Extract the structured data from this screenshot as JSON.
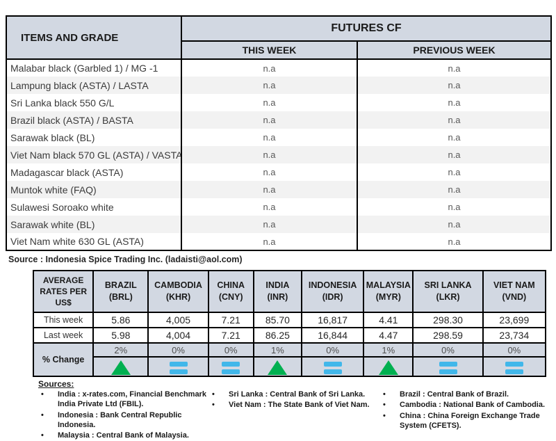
{
  "colors": {
    "header_bg": "#d2d8e2",
    "alt_row_bg": "#f2f2f2",
    "up_green": "#00b050",
    "flat_blue": "#41b7ea"
  },
  "futures_table": {
    "items_header": "ITEMS AND GRADE",
    "group_header": "FUTURES CF",
    "subheaders": {
      "this_week": "THIS WEEK",
      "previous_week": "PREVIOUS WEEK"
    },
    "rows": [
      {
        "item": "Malabar black (Garbled 1) / MG -1",
        "this_week": "n.a",
        "previous_week": "n.a"
      },
      {
        "item": "Lampung black (ASTA) / LASTA",
        "this_week": "n.a",
        "previous_week": "n.a"
      },
      {
        "item": "Sri Lanka black 550 G/L",
        "this_week": "n.a",
        "previous_week": "n.a"
      },
      {
        "item": "Brazil black (ASTA) / BASTA",
        "this_week": "n.a",
        "previous_week": "n.a"
      },
      {
        "item": "Sarawak black (BL)",
        "this_week": "n.a",
        "previous_week": "n.a"
      },
      {
        "item": "Viet Nam black 570 GL (ASTA) / VASTA",
        "this_week": "n.a",
        "previous_week": "n.a"
      },
      {
        "item": "Madagascar black (ASTA)",
        "this_week": "n.a",
        "previous_week": "n.a"
      },
      {
        "item": "Muntok white (FAQ)",
        "this_week": "n.a",
        "previous_week": "n.a"
      },
      {
        "item": "Sulawesi Soroako white",
        "this_week": "n.a",
        "previous_week": "n.a"
      },
      {
        "item": "Sarawak  white (BL)",
        "this_week": "n.a",
        "previous_week": "n.a"
      },
      {
        "item": "Viet Nam white 630 GL (ASTA)",
        "this_week": "n.a",
        "previous_week": "n.a"
      }
    ],
    "source_note": "Source : Indonesia Spice Trading Inc. (ladaisti@aol.com)"
  },
  "rates_table": {
    "corner_header": "AVERAGE RATES PER US$",
    "row_labels": {
      "this_week": "This week",
      "last_week": "Last week",
      "pct_change": "% Change"
    },
    "columns": [
      {
        "country": "BRAZIL",
        "code": "(BRL)",
        "this_week": "5.86",
        "last_week": "5.98",
        "pct_change": "2%",
        "trend": "up"
      },
      {
        "country": "CAMBODIA",
        "code": "(KHR)",
        "this_week": "4,005",
        "last_week": "4,004",
        "pct_change": "0%",
        "trend": "flat"
      },
      {
        "country": "CHINA",
        "code": "(CNY)",
        "this_week": "7.21",
        "last_week": "7.21",
        "pct_change": "0%",
        "trend": "flat"
      },
      {
        "country": "INDIA",
        "code": "(INR)",
        "this_week": "85.70",
        "last_week": "86.25",
        "pct_change": "1%",
        "trend": "up"
      },
      {
        "country": "INDONESIA",
        "code": "(IDR)",
        "this_week": "16,817",
        "last_week": "16,844",
        "pct_change": "0%",
        "trend": "flat"
      },
      {
        "country": "MALAYSIA",
        "code": "(MYR)",
        "this_week": "4.41",
        "last_week": "4.47",
        "pct_change": "1%",
        "trend": "up"
      },
      {
        "country": "SRI LANKA",
        "code": "(LKR)",
        "this_week": "298.30",
        "last_week": "298.59",
        "pct_change": "0%",
        "trend": "flat"
      },
      {
        "country": "VIET NAM",
        "code": "(VND)",
        "this_week": "23,699",
        "last_week": "23,734",
        "pct_change": "0%",
        "trend": "flat"
      }
    ]
  },
  "sources_footer": {
    "title": "Sources:",
    "col1": [
      "India : x-rates.com, Financial Benchmark India Private Ltd (FBIL).",
      "Indonesia : Bank Central Republic Indonesia.",
      "Malaysia : Central Bank of Malaysia."
    ],
    "col2": [
      "Sri Lanka : Central Bank of Sri Lanka.",
      "Viet Nam : The State Bank of Viet Nam."
    ],
    "col3": [
      "Brazil :  Central Bank of Brazil.",
      "Cambodia : National Bank of Cambodia.",
      "China : China Foreign Exchange Trade System (CFETS)."
    ]
  }
}
